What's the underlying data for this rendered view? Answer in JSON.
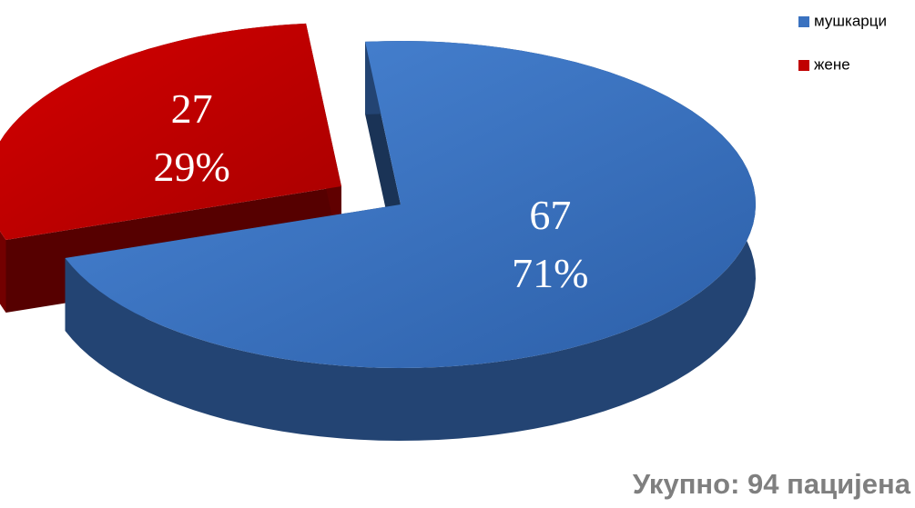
{
  "chart_data": {
    "type": "pie",
    "is_3d": true,
    "categories": [
      "мушкарци",
      "жене"
    ],
    "values": [
      67,
      27
    ],
    "percent_labels": [
      "71%",
      "29%"
    ],
    "colors": [
      "#3a72c0",
      "#c00000"
    ],
    "exploded": [
      false,
      true
    ],
    "legend": "top-right",
    "annotation": "Укупно: 94 пацијена"
  }
}
